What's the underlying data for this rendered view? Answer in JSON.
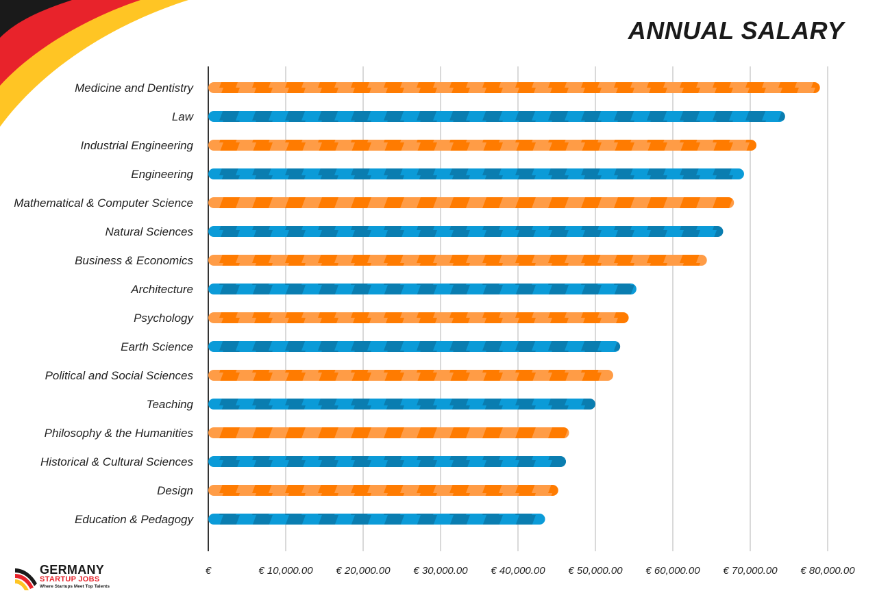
{
  "chart_data": {
    "type": "bar",
    "orientation": "horizontal",
    "title": "ANNUAL SALARY",
    "categories": [
      "Medicine and Dentistry",
      "Law",
      "Industrial Engineering",
      "Engineering",
      "Mathematical & Computer Science",
      "Natural Sciences",
      "Business & Economics",
      "Architecture",
      "Psychology",
      "Earth Science",
      "Political and Social Sciences",
      "Teaching",
      "Philosophy & the Humanities",
      "Historical & Cultural Sciences",
      "Design",
      "Education & Pedagogy"
    ],
    "values": [
      79000,
      74500,
      70800,
      69200,
      67900,
      66500,
      64400,
      55300,
      54300,
      53200,
      52300,
      50000,
      46600,
      46200,
      45200,
      43500
    ],
    "xlim": [
      0,
      80000
    ],
    "ticks": [
      "€",
      "€ 10,000.00",
      "€ 20,000.00",
      "€ 30,000.00",
      "€ 40,000.00",
      "€ 50,000.00",
      "€ 60,000.00",
      "€ 70,000.00",
      "€ 80,000.00"
    ],
    "tick_values": [
      0,
      10000,
      20000,
      30000,
      40000,
      50000,
      60000,
      70000,
      80000
    ],
    "grid": true,
    "colors": {
      "orange_dark": "#ff7b00",
      "orange_light": "#ff9c46",
      "blue_dark": "#0a7db0",
      "blue_light": "#0b9bd8",
      "grid": "#d9d9d9",
      "axis": "#333333"
    }
  },
  "logo": {
    "line1": "GERMANY",
    "line2": "STARTUP JOBS",
    "line3": "Where Startups Meet Top Talents"
  },
  "flag_colors": [
    "#1a1a1a",
    "#e8232b",
    "#ffc524"
  ]
}
